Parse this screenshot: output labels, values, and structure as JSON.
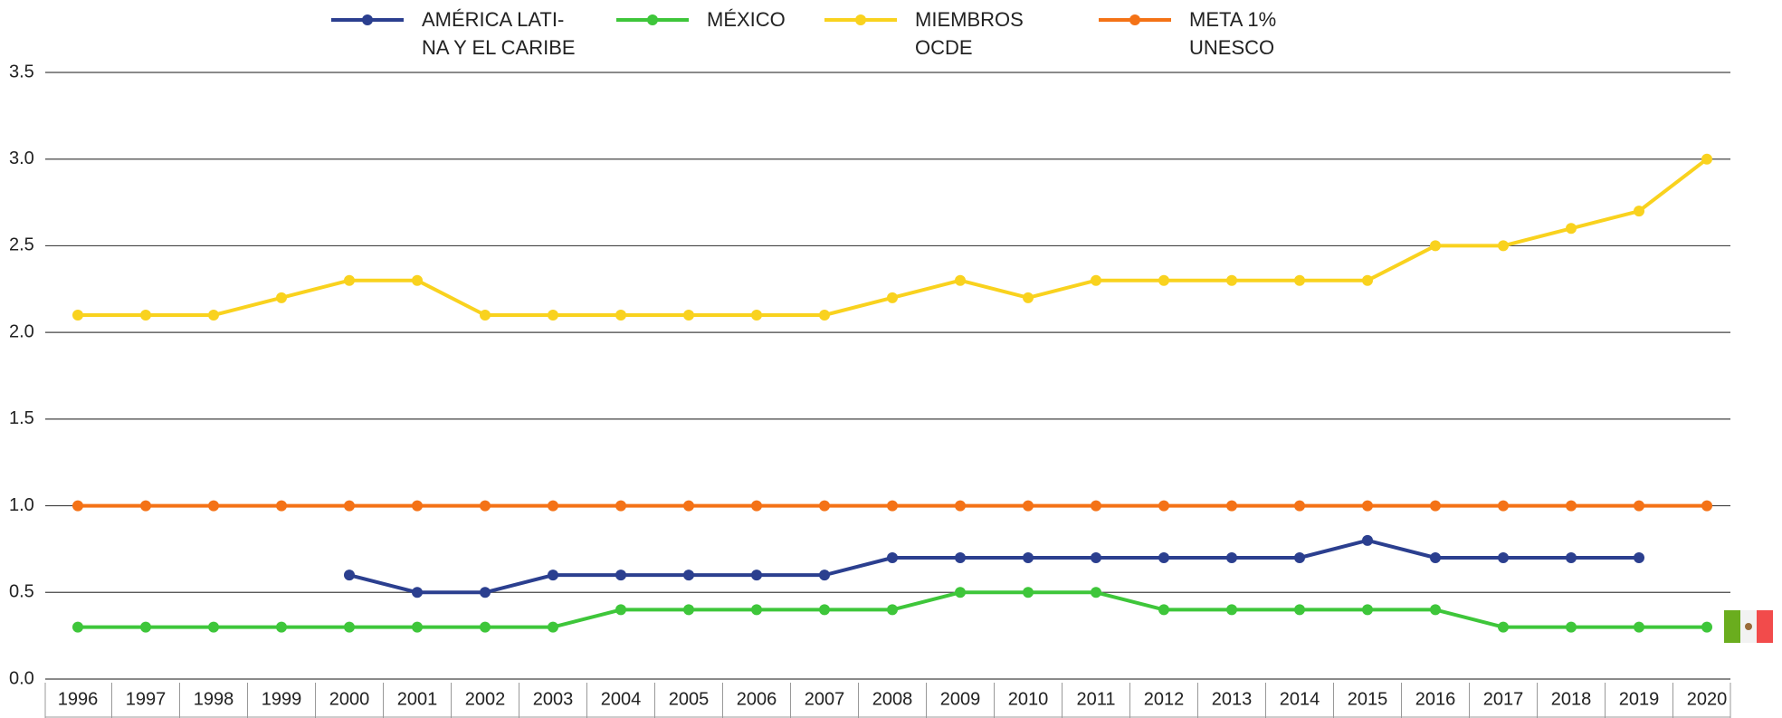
{
  "chart_data": {
    "type": "line",
    "categories": [
      "1996",
      "1997",
      "1998",
      "1999",
      "2000",
      "2001",
      "2002",
      "2003",
      "2004",
      "2005",
      "2006",
      "2007",
      "2008",
      "2009",
      "2010",
      "2011",
      "2012",
      "2013",
      "2014",
      "2015",
      "2016",
      "2017",
      "2018",
      "2019",
      "2020"
    ],
    "series": [
      {
        "name": "AMÉRICA LATI-\nNA Y EL CARIBE",
        "color": "#2b3f8f",
        "values": [
          null,
          null,
          null,
          null,
          0.6,
          0.5,
          0.5,
          0.6,
          0.6,
          0.6,
          0.6,
          0.6,
          0.7,
          0.7,
          0.7,
          0.7,
          0.7,
          0.7,
          0.7,
          0.8,
          0.7,
          0.7,
          0.7,
          0.7,
          null
        ]
      },
      {
        "name": "MÉXICO",
        "color": "#3ec63a",
        "values": [
          0.3,
          0.3,
          0.3,
          0.3,
          0.3,
          0.3,
          0.3,
          0.3,
          0.4,
          0.4,
          0.4,
          0.4,
          0.4,
          0.5,
          0.5,
          0.5,
          0.4,
          0.4,
          0.4,
          0.4,
          0.4,
          0.3,
          0.3,
          0.3,
          0.3
        ]
      },
      {
        "name": "MIEMBROS\nOCDE",
        "color": "#f9d21e",
        "values": [
          2.1,
          2.1,
          2.1,
          2.2,
          2.3,
          2.3,
          2.1,
          2.1,
          2.1,
          2.1,
          2.1,
          2.1,
          2.2,
          2.3,
          2.2,
          2.3,
          2.3,
          2.3,
          2.3,
          2.3,
          2.5,
          2.5,
          2.6,
          2.7,
          3.0
        ]
      },
      {
        "name": "META 1%\nUNESCO",
        "color": "#f47216",
        "values": [
          1.0,
          1.0,
          1.0,
          1.0,
          1.0,
          1.0,
          1.0,
          1.0,
          1.0,
          1.0,
          1.0,
          1.0,
          1.0,
          1.0,
          1.0,
          1.0,
          1.0,
          1.0,
          1.0,
          1.0,
          1.0,
          1.0,
          1.0,
          1.0,
          1.0
        ]
      }
    ],
    "ylim": [
      0,
      3.5
    ],
    "yticks": [
      {
        "value": 0,
        "label": "0.0"
      },
      0.5,
      {
        "value": 1,
        "label": "1.0"
      },
      1.5,
      {
        "value": 2,
        "label": "2.0"
      },
      2.5,
      {
        "value": 3,
        "label": "3.0"
      },
      3.5
    ],
    "grid": true,
    "legend": "top"
  }
}
